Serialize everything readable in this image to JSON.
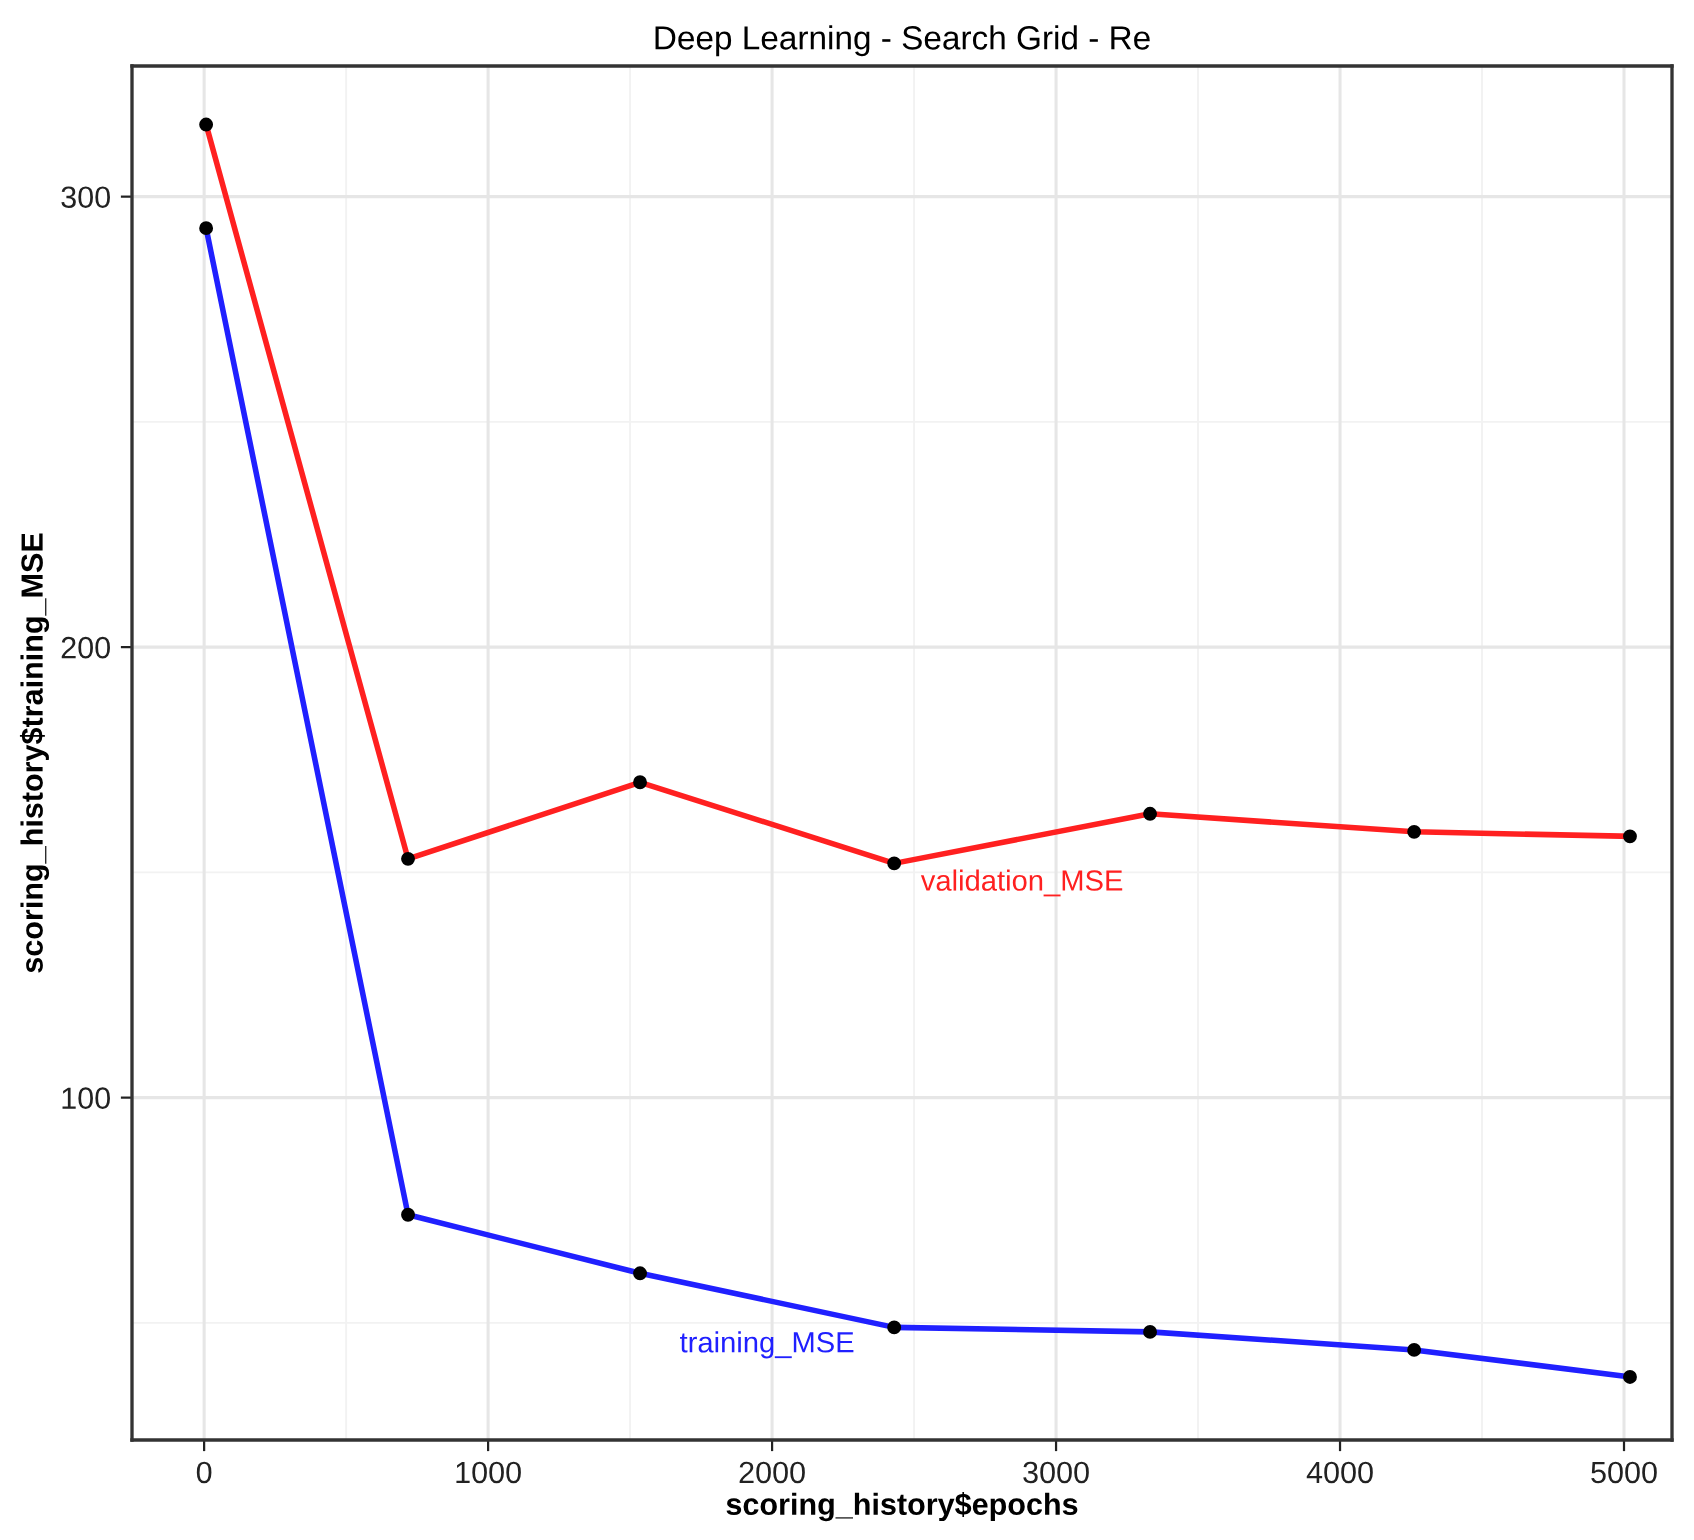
{
  "chart_data": {
    "type": "line",
    "title": "Deep Learning - Search Grid - Re",
    "xlabel": "scoring_history$epochs",
    "ylabel": "scoring_history$training_MSE",
    "series": [
      {
        "name": "validation_MSE",
        "color": "#ff2020",
        "x": [
          7,
          718,
          1535,
          2430,
          3331,
          4261,
          5021
        ],
        "values": [
          316,
          153,
          170,
          152,
          163,
          159,
          158
        ]
      },
      {
        "name": "training_MSE",
        "color": "#2020ff",
        "x": [
          7,
          718,
          1535,
          2430,
          3331,
          4261,
          5021
        ],
        "values": [
          293,
          74,
          61,
          49,
          48,
          44,
          38
        ]
      }
    ],
    "xlim": [
      -254,
      5169
    ],
    "ylim": [
      24,
      329
    ],
    "xticks": [
      0,
      1000,
      2000,
      3000,
      4000,
      5000
    ],
    "yticks": [
      100,
      200,
      300
    ],
    "grid": true,
    "legend": false,
    "marker": "circle",
    "line_style": "solid"
  }
}
